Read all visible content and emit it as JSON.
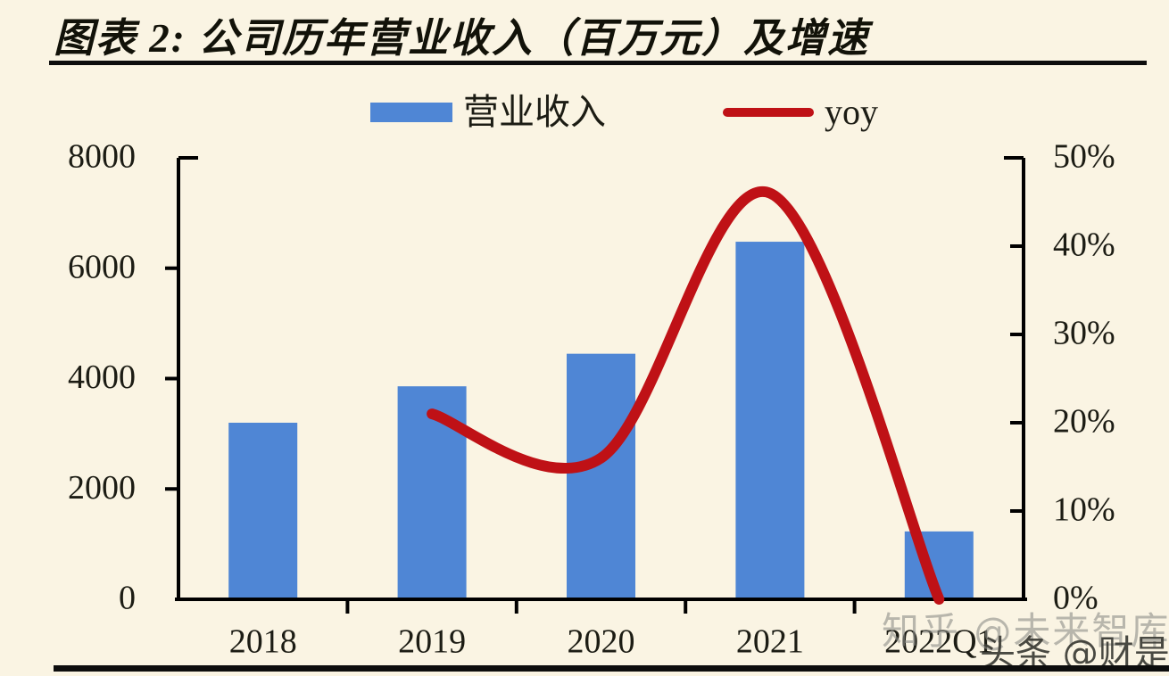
{
  "header": {
    "title": "图表 2: 公司历年营业收入（百万元）及增速"
  },
  "colors": {
    "background": "#FAF4E3",
    "bar": "#4F86D5",
    "line": "#BF1116",
    "axis": "#000000",
    "text": "#1C1C14",
    "watermark_light": "#8D8D88",
    "watermark_dark": "#3B3B35"
  },
  "watermarks": [
    {
      "text": "知乎 @未来智库",
      "style": "light"
    },
    {
      "text": "头条 @财是",
      "style": "dark"
    }
  ],
  "chart_data": {
    "type": "bar",
    "subtype": "bar+line combo",
    "title": "公司历年营业收入（百万元）及增速",
    "categories": [
      "2018",
      "2019",
      "2020",
      "2021",
      "2022Q1"
    ],
    "series": [
      {
        "name": "营业收入",
        "type": "bar",
        "axis": "left",
        "values": [
          3200,
          3860,
          4450,
          6480,
          1230
        ]
      },
      {
        "name": "yoy",
        "type": "line",
        "axis": "right",
        "unit": "%",
        "smooth": true,
        "values": [
          null,
          21,
          16,
          46,
          0
        ]
      }
    ],
    "left_axis": {
      "min": 0,
      "max": 8000,
      "ticks": [
        0,
        2000,
        4000,
        6000,
        8000
      ]
    },
    "right_axis": {
      "min": 0,
      "max": 50,
      "ticks": [
        0,
        10,
        20,
        30,
        40,
        50
      ],
      "tick_suffix": "%"
    },
    "legend_position": "top",
    "grid": false
  }
}
